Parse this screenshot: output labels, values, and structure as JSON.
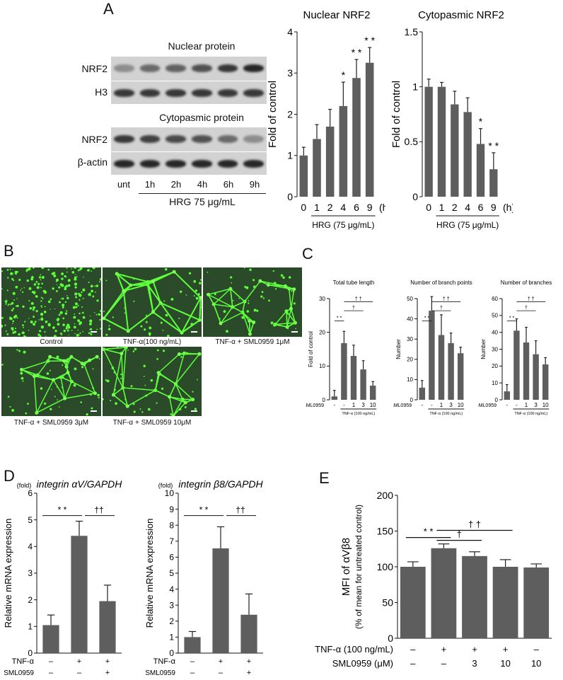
{
  "panels": {
    "A": "A",
    "B": "B",
    "C": "C",
    "D": "D",
    "E": "E"
  },
  "panel_a": {
    "nuclear_title": "Nuclear protein",
    "cyto_title": "Cytopasmic protein",
    "row_labels": [
      "NRF2",
      "H3",
      "NRF2",
      "β-actin"
    ],
    "lanes": [
      "unt",
      "1h",
      "2h",
      "4h",
      "6h",
      "9h"
    ],
    "treatment": "HRG 75 μg/mL",
    "nuclear_band_intensity": [
      0.35,
      0.55,
      0.6,
      0.7,
      0.85,
      0.95
    ],
    "cyto_band_intensity": [
      0.85,
      0.8,
      0.75,
      0.7,
      0.55,
      0.35
    ]
  },
  "panel_b": {
    "captions": [
      "Control",
      "TNF-α(100 ng/mL)",
      "TNF-α + SML0959 1μM",
      "TNF-α + SML0959 3μM",
      "TNF-α + SML0959 10μM"
    ]
  },
  "chart_data": [
    {
      "id": "A1",
      "type": "bar",
      "title": "Nuclear NRF2",
      "categories": [
        "0",
        "1",
        "2",
        "4",
        "6",
        "9"
      ],
      "values": [
        1.0,
        1.4,
        1.7,
        2.2,
        2.88,
        3.25
      ],
      "errors": [
        0.2,
        0.35,
        0.42,
        0.58,
        0.45,
        0.37
      ],
      "sig": [
        "",
        "",
        "",
        "*",
        "**",
        "**"
      ],
      "ylabel": "Fold  of control",
      "ylim": [
        0,
        4
      ],
      "yticks": [
        "0",
        "1",
        "2",
        "3",
        "4"
      ],
      "unit": "(h)",
      "xgroup": "HRG (75 μg/mL)"
    },
    {
      "id": "A2",
      "type": "bar",
      "title": "Cytopasmic NRF2",
      "categories": [
        "0",
        "1",
        "2",
        "4",
        "6",
        "9"
      ],
      "values": [
        1.0,
        1.0,
        0.84,
        0.77,
        0.48,
        0.25
      ],
      "errors": [
        0.07,
        0.04,
        0.12,
        0.13,
        0.14,
        0.15
      ],
      "sig": [
        "",
        "",
        "",
        "",
        "*",
        "**"
      ],
      "ylabel": "Fold  of control",
      "ylim": [
        0,
        1.5
      ],
      "yticks": [
        "0",
        "0.5",
        "1",
        "1.5"
      ],
      "unit": "(h)",
      "xgroup": "HRG (75 μg/mL)"
    },
    {
      "id": "C1",
      "type": "bar",
      "title": "Total tube length",
      "categories": [
        "-",
        "-",
        "1",
        "3",
        "10"
      ],
      "values": [
        1,
        16.8,
        13,
        9,
        4.2
      ],
      "errors": [
        1.8,
        3.5,
        3.2,
        2.6,
        1.2
      ],
      "ylabel": "Fold  of control",
      "ylim": [
        0,
        30
      ],
      "yticks": [
        "0",
        "10",
        "20",
        "30"
      ],
      "row_label": "SML0959",
      "xgroup": "TNF-α (100 ng/mL)",
      "brackets": [
        {
          "label": "**"
        },
        {
          "label": "†"
        },
        {
          "label": "††"
        }
      ]
    },
    {
      "id": "C2",
      "type": "bar",
      "title": "Number of branch points",
      "categories": [
        "-",
        "-",
        "1",
        "3",
        "10"
      ],
      "values": [
        6,
        44,
        32,
        28,
        23
      ],
      "errors": [
        3.5,
        7,
        10,
        5,
        3
      ],
      "ylabel": "Number",
      "ylim": [
        0,
        50
      ],
      "yticks": [
        "0",
        "10",
        "20",
        "30",
        "40",
        "50"
      ],
      "row_label": "SML0959",
      "xgroup": "TNF-α (100 ng/mL)",
      "brackets": [
        {
          "label": "**"
        },
        {
          "label": "†"
        },
        {
          "label": "††"
        }
      ]
    },
    {
      "id": "C3",
      "type": "bar",
      "title": "Number of branches",
      "categories": [
        "-",
        "-",
        "1",
        "3",
        "10"
      ],
      "values": [
        5,
        41,
        34,
        27,
        21
      ],
      "errors": [
        4,
        7,
        9,
        8,
        4
      ],
      "ylabel": "Number",
      "ylim": [
        0,
        60
      ],
      "yticks": [
        "0",
        "10",
        "20",
        "30",
        "40",
        "50",
        "60"
      ],
      "row_label": "SML0959",
      "xgroup": "TNF-α (100 ng/mL)",
      "brackets": [
        {
          "label": "**"
        },
        {
          "label": "†"
        },
        {
          "label": "††"
        }
      ]
    },
    {
      "id": "D1",
      "type": "bar",
      "title": "integrin αV/GAPDH",
      "categories": [
        "1",
        "2",
        "3"
      ],
      "values": [
        1.05,
        4.4,
        1.95
      ],
      "errors": [
        0.38,
        0.55,
        0.6
      ],
      "ylabel": "Relative mRNA expression",
      "yunit": "(fold)",
      "ylim": [
        0,
        6
      ],
      "yticks": [
        "0",
        "1",
        "2",
        "3",
        "4",
        "5",
        "6"
      ],
      "rows": [
        {
          "label": "TNF-α",
          "marks": [
            "–",
            "+",
            "+"
          ]
        },
        {
          "label": "SML0959",
          "marks": [
            "–",
            "–",
            "+"
          ]
        }
      ],
      "brackets": [
        {
          "label": "**"
        },
        {
          "label": "††"
        }
      ]
    },
    {
      "id": "D2",
      "type": "bar",
      "title": "integrin β8/GAPDH",
      "categories": [
        "1",
        "2",
        "3"
      ],
      "values": [
        1.0,
        6.55,
        2.4
      ],
      "errors": [
        0.35,
        1.35,
        1.3
      ],
      "ylabel": "Relative mRNA expression",
      "yunit": "(fold)",
      "ylim": [
        0,
        10
      ],
      "yticks": [
        "0",
        "1",
        "2",
        "3",
        "4",
        "5",
        "6",
        "7",
        "8",
        "9",
        "10"
      ],
      "rows": [
        {
          "label": "TNF-α",
          "marks": [
            "–",
            "+",
            "+"
          ]
        },
        {
          "label": "SML0959",
          "marks": [
            "–",
            "–",
            "+"
          ]
        }
      ],
      "brackets": [
        {
          "label": "**"
        },
        {
          "label": "††"
        }
      ]
    },
    {
      "id": "E",
      "type": "bar",
      "title": "",
      "categories": [
        "1",
        "2",
        "3",
        "4",
        "5"
      ],
      "values": [
        100,
        126,
        115,
        100,
        99
      ],
      "errors": [
        7,
        6,
        6,
        10,
        5
      ],
      "ylabel": "MFI of αVβ8",
      "ylabel2": "(% of mean for untreated control)",
      "ylim": [
        0,
        200
      ],
      "yticks": [
        "0",
        "50",
        "100",
        "150",
        "200"
      ],
      "rows": [
        {
          "label": "TNF-α (100 ng/mL)",
          "marks": [
            "–",
            "+",
            "+",
            "+",
            "–"
          ]
        },
        {
          "label": "SML0959 (μM)",
          "marks": [
            "–",
            "–",
            "3",
            "10",
            "10"
          ]
        }
      ],
      "brackets": [
        {
          "label": "**"
        },
        {
          "label": "†"
        },
        {
          "label": "††"
        }
      ]
    }
  ]
}
